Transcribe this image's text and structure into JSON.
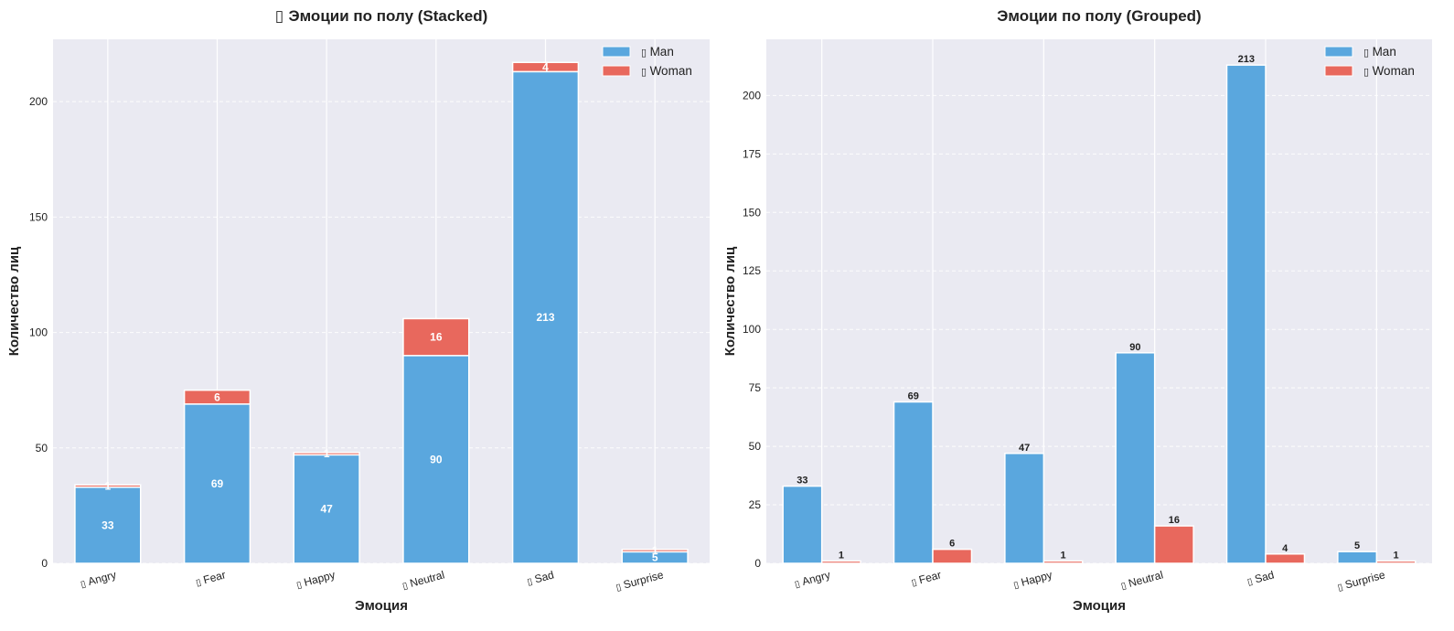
{
  "glyph_placeholder": "▯",
  "colors": {
    "man": "#5aa7de",
    "woman": "#e8685d",
    "plot_bg": "#eaeaf2",
    "grid": "#ffffff"
  },
  "chart_data": [
    {
      "type": "bar",
      "mode": "stacked",
      "title": "Эмоции по полу (Stacked)",
      "title_has_glyph": true,
      "xlabel": "Эмоция",
      "ylabel": "Количество лиц",
      "categories": [
        "Angry",
        "Fear",
        "Happy",
        "Neutral",
        "Sad",
        "Surprise"
      ],
      "series": [
        {
          "name": "Man",
          "values": [
            33,
            69,
            47,
            90,
            213,
            5
          ]
        },
        {
          "name": "Woman",
          "values": [
            1,
            6,
            1,
            16,
            4,
            1
          ]
        }
      ],
      "ylim": [
        0,
        227
      ],
      "yticks": [
        0,
        50,
        100,
        150,
        200
      ],
      "grid": true,
      "legend": "top-right"
    },
    {
      "type": "bar",
      "mode": "grouped",
      "title": "Эмоции по полу (Grouped)",
      "title_has_glyph": false,
      "xlabel": "Эмоция",
      "ylabel": "Количество лиц",
      "categories": [
        "Angry",
        "Fear",
        "Happy",
        "Neutral",
        "Sad",
        "Surprise"
      ],
      "series": [
        {
          "name": "Man",
          "values": [
            33,
            69,
            47,
            90,
            213,
            5
          ]
        },
        {
          "name": "Woman",
          "values": [
            1,
            6,
            1,
            16,
            4,
            1
          ]
        }
      ],
      "ylim": [
        0,
        224
      ],
      "yticks": [
        0,
        25,
        50,
        75,
        100,
        125,
        150,
        175,
        200
      ],
      "grid": true,
      "legend": "top-right"
    }
  ]
}
